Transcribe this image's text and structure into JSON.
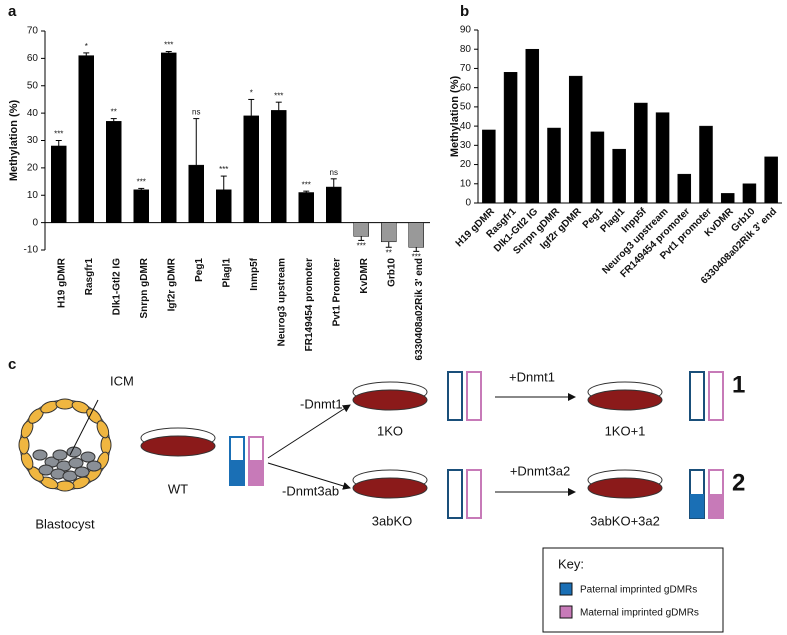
{
  "panel_labels": [
    "a",
    "b",
    "c"
  ],
  "chart_data": [
    {
      "type": "bar",
      "ylabel": "Methylation (%)",
      "categories": [
        "H19 gDMR",
        "Rasgfr1",
        "Dlk1-Gtl2 IG",
        "Snrpn gDMR",
        "Igf2r gDMR",
        "Peg1",
        "Plagl1",
        "Inmp5f",
        "Neurog3 upstream",
        "FR149454 promoter",
        "Pvt1 Promoter",
        "KvDMR",
        "Grb10",
        "6330408a02Rik 3' end"
      ],
      "values": [
        28,
        61,
        37,
        12,
        62,
        21,
        12,
        39,
        41,
        11,
        13,
        -5,
        -7,
        -9
      ],
      "errors": [
        2,
        1,
        1,
        0.5,
        0.5,
        17,
        5,
        6,
        3,
        0.5,
        3,
        1.5,
        2,
        1.5
      ],
      "significance": [
        "***",
        "*",
        "**",
        "***",
        "***",
        "ns",
        "***",
        "*",
        "***",
        "***",
        "ns",
        "***",
        "**",
        "***"
      ],
      "colors": [
        "#000000",
        "#000000",
        "#000000",
        "#000000",
        "#000000",
        "#000000",
        "#000000",
        "#000000",
        "#000000",
        "#000000",
        "#000000",
        "#999999",
        "#999999",
        "#999999"
      ],
      "ylim": [
        -10,
        70
      ],
      "yticks": [
        -10,
        0,
        10,
        20,
        30,
        40,
        50,
        60,
        70
      ]
    },
    {
      "type": "bar",
      "ylabel": "Methylation (%)",
      "categories": [
        "H19 gDMR",
        "Rasgfr1",
        "Dlk1-Gtl2  IG",
        "Snrpn gDMR",
        "Igf2r gDMR",
        "Peg1",
        "Plagl1",
        "Inpp5f",
        "Neurog3 upstream",
        "FR149454 promoter",
        "Pvt1 promoter",
        "KvDMR",
        "Grb10",
        "6330408a02Rik 3' end"
      ],
      "values": [
        38,
        68,
        80,
        39,
        66,
        37,
        28,
        52,
        47,
        15,
        40,
        5,
        10,
        24
      ],
      "color": "#000000",
      "ylim": [
        0,
        90
      ],
      "yticks": [
        0,
        10,
        20,
        30,
        40,
        50,
        60,
        70,
        80,
        90
      ]
    }
  ],
  "diagram": {
    "icm": "ICM",
    "blastocyst": "Blastocyst",
    "wt": "WT",
    "steps": [
      "-Dnmt1",
      "-Dnmt3ab",
      "+Dnmt1",
      "+Dnmt3a2"
    ],
    "dishes": [
      "1KO",
      "1KO+1",
      "3abKO",
      "3abKO+3a2"
    ],
    "outcomes": [
      "1",
      "2"
    ],
    "key": {
      "title": "Key:",
      "items": [
        "Paternal imprinted gDMRs",
        "Maternal imprinted gDMRs"
      ]
    }
  }
}
